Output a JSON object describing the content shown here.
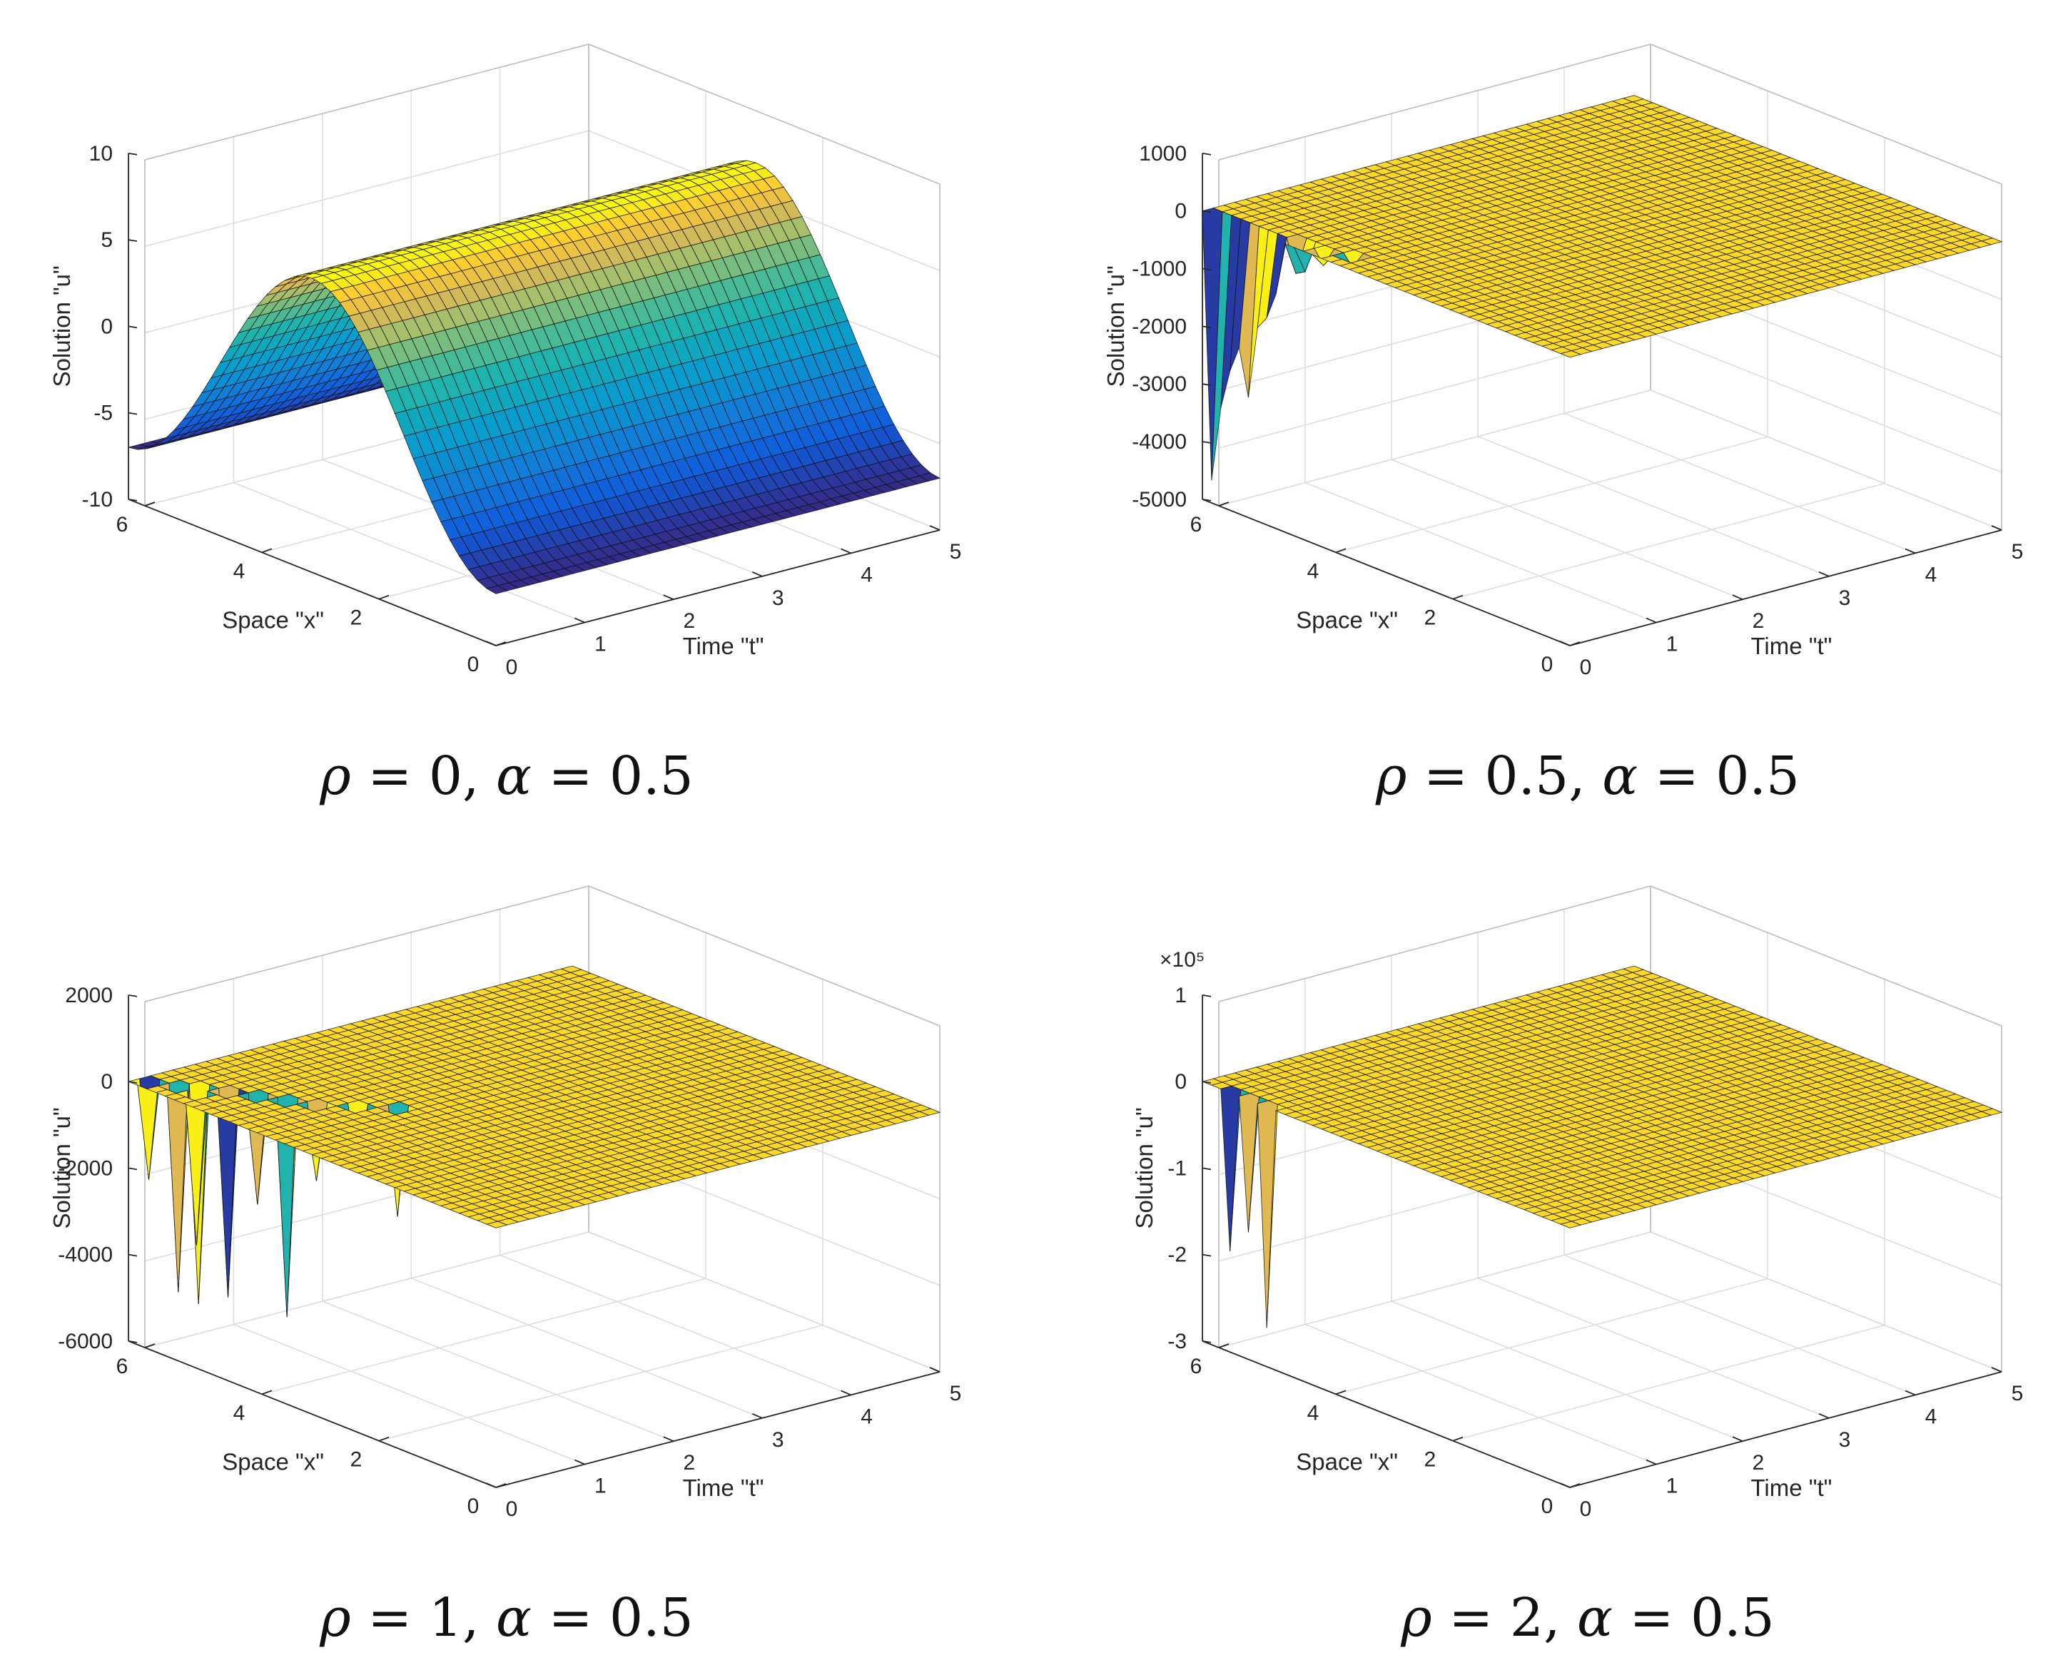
{
  "chart_data": [
    {
      "type": "surface",
      "panel_id": "p1",
      "caption": {
        "rho": "ρ",
        "rho_val": "0",
        "alpha": "α",
        "alpha_val": "0.5"
      },
      "xlabel": "Space \"x\"",
      "ylabel": "Time \"t\"",
      "zlabel": "Solution \"u\"",
      "x_range": [
        0,
        6.28
      ],
      "t_range": [
        0,
        5
      ],
      "zlim": [
        -10,
        10
      ],
      "x_ticks": [
        "0",
        "2",
        "4",
        "6"
      ],
      "t_ticks": [
        "0",
        "1",
        "2",
        "3",
        "4",
        "5"
      ],
      "z_ticks": [
        "-10",
        "-5",
        "0",
        "5",
        "10"
      ],
      "z_exponent": "",
      "colormap": "parula",
      "surface": {
        "kind": "smooth",
        "amplitude": 7,
        "func": "-7*cos(x)"
      }
    },
    {
      "type": "surface",
      "panel_id": "p2",
      "caption": {
        "rho": "ρ",
        "rho_val": "0.5",
        "alpha": "α",
        "alpha_val": "0.5"
      },
      "xlabel": "Space \"x\"",
      "ylabel": "Time \"t\"",
      "zlabel": "Solution \"u\"",
      "x_range": [
        0,
        6.28
      ],
      "t_range": [
        0,
        5
      ],
      "zlim": [
        -5000,
        1000
      ],
      "x_ticks": [
        "0",
        "2",
        "4",
        "6"
      ],
      "t_ticks": [
        "0",
        "1",
        "2",
        "3",
        "4",
        "5"
      ],
      "z_ticks": [
        "-5000",
        "-4000",
        "-3000",
        "-2000",
        "-1000",
        "0",
        "1000"
      ],
      "z_exponent": "",
      "colormap": "parula",
      "surface": {
        "kind": "spiky",
        "min_value": -4700,
        "max_value": 200
      }
    },
    {
      "type": "surface",
      "panel_id": "p3",
      "caption": {
        "rho": "ρ",
        "rho_val": "1",
        "alpha": "α",
        "alpha_val": "0.5"
      },
      "xlabel": "Space \"x\"",
      "ylabel": "Time \"t\"",
      "zlabel": "Solution \"u\"",
      "x_range": [
        0,
        6.28
      ],
      "t_range": [
        0,
        5
      ],
      "zlim": [
        -6000,
        2000
      ],
      "x_ticks": [
        "0",
        "2",
        "4",
        "6"
      ],
      "t_ticks": [
        "0",
        "1",
        "2",
        "3",
        "4",
        "5"
      ],
      "z_ticks": [
        "-6000",
        "-4000",
        "-2000",
        "0",
        "2000"
      ],
      "z_exponent": "",
      "colormap": "parula",
      "surface": {
        "kind": "spiky",
        "min_value": -5000,
        "max_value": 0
      }
    },
    {
      "type": "surface",
      "panel_id": "p4",
      "caption": {
        "rho": "ρ",
        "rho_val": "2",
        "alpha": "α",
        "alpha_val": "0.5"
      },
      "xlabel": "Space \"x\"",
      "ylabel": "Time \"t\"",
      "zlabel": "Solution \"u\"",
      "x_range": [
        0,
        6.28
      ],
      "t_range": [
        0,
        5
      ],
      "zlim": [
        -3,
        1
      ],
      "x_ticks": [
        "0",
        "2",
        "4",
        "6"
      ],
      "t_ticks": [
        "0",
        "1",
        "2",
        "3",
        "4",
        "5"
      ],
      "z_ticks": [
        "-3",
        "-2",
        "-1",
        "0",
        "1"
      ],
      "z_exponent": "×10⁵",
      "colormap": "parula",
      "surface": {
        "kind": "spiky",
        "min_value": -2.55,
        "max_value": 0
      }
    }
  ]
}
